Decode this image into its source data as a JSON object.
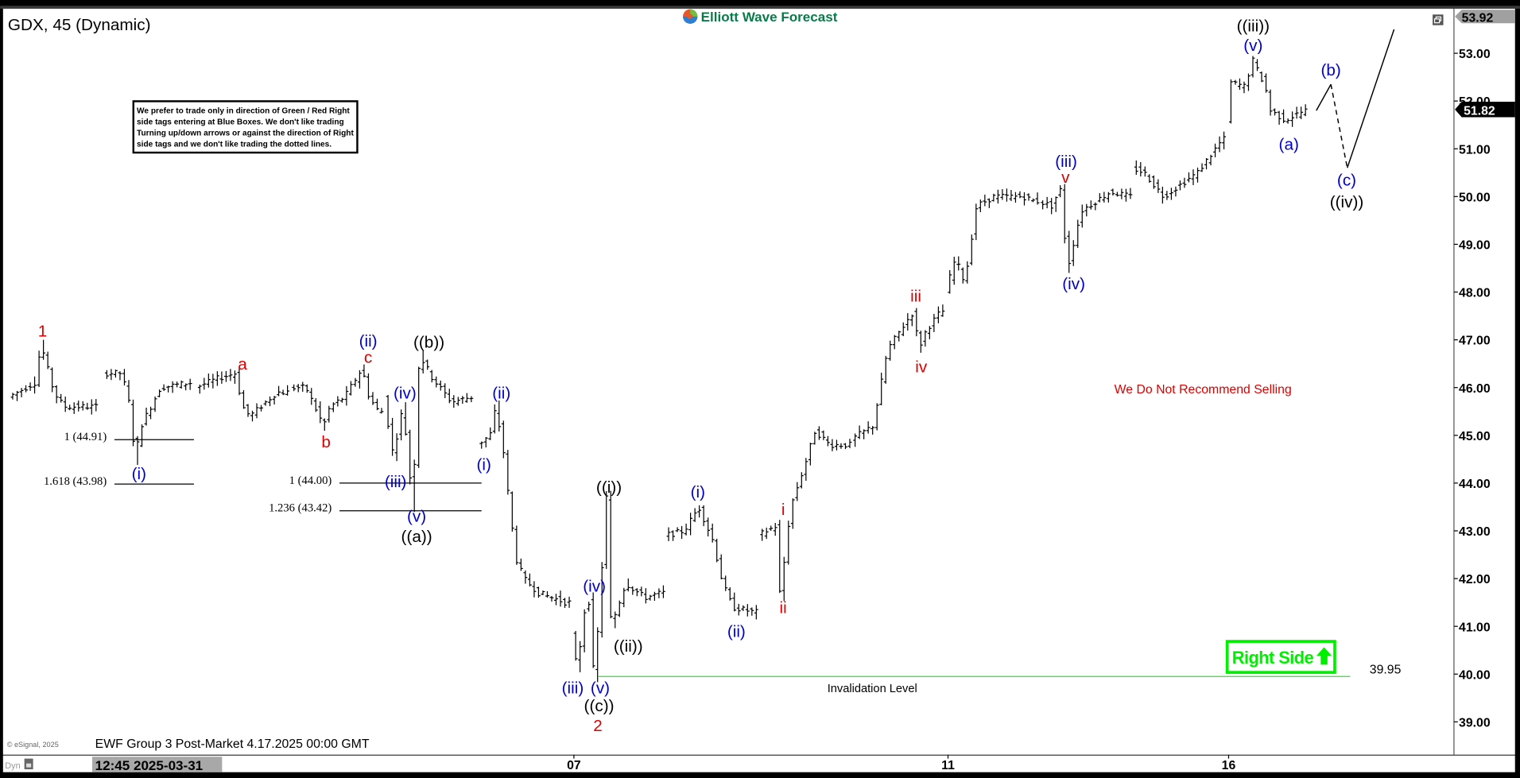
{
  "header": {
    "symbol_title": "GDX, 45 (Dynamic)",
    "logo_text": "Elliott Wave Forecast"
  },
  "notice": {
    "lines": [
      "We prefer to trade only in direction of Green / Red Right",
      "side tags entering at Blue Boxes. We don't like trading",
      "Turning up/down arrows or against the direction of Right",
      "side tags and we don't like trading the dotted lines."
    ]
  },
  "footer": {
    "copyright": "© eSignal, 2025",
    "caption": "EWF Group 3 Post-Market 4.17.2025 00:00 GMT",
    "dyn_label": "Dyn",
    "cursor_time": "12:45 2025-03-31"
  },
  "colors": {
    "blue_labels": "#0000cc",
    "red_labels": "#dd0000",
    "black_labels": "#000000",
    "invalidation": "#33dd33",
    "right_side": "#00ee00",
    "logo_text": "#0b7a4b"
  },
  "chart_data": {
    "type": "ohlc",
    "symbol": "GDX",
    "interval": "45",
    "ylim": [
      38.5,
      53.92
    ],
    "y_ticks": [
      "39.00",
      "40.00",
      "41.00",
      "42.00",
      "43.00",
      "44.00",
      "45.00",
      "46.00",
      "47.00",
      "48.00",
      "49.00",
      "50.00",
      "51.00",
      "52.00",
      "53.00"
    ],
    "x_ticks": [
      {
        "date": "04-07",
        "label": "07"
      },
      {
        "date": "04-11",
        "label": "11"
      },
      {
        "date": "04-16",
        "label": "16"
      }
    ],
    "high_marker": "53.92",
    "last_price": "51.82",
    "sessions": [
      {
        "date": "03-28",
        "path": [
          [
            4.0,
            45.8
          ],
          [
            8.5,
            46.1
          ],
          [
            9.6,
            46.9
          ],
          [
            11.8,
            45.9
          ],
          [
            13.5,
            45.6
          ],
          [
            18.4,
            45.6
          ]
        ]
      },
      {
        "date": "03-31",
        "path": [
          [
            4.1,
            46.3
          ],
          [
            7.4,
            46.3
          ],
          [
            9.0,
            45.5
          ],
          [
            9.6,
            44.5
          ],
          [
            10.7,
            45.2
          ],
          [
            14.0,
            46.0
          ],
          [
            19.0,
            46.1
          ]
        ]
      },
      {
        "date": "04-01",
        "path": [
          [
            4.0,
            46.0
          ],
          [
            8.0,
            46.2
          ],
          [
            10.8,
            46.3
          ],
          [
            12.1,
            45.6
          ],
          [
            13.3,
            45.4
          ],
          [
            17.9,
            45.9
          ],
          [
            19.6,
            45.9
          ]
        ]
      },
      {
        "date": "04-02",
        "path": [
          [
            4.1,
            46.0
          ],
          [
            6.9,
            46.0
          ],
          [
            9.9,
            45.2
          ],
          [
            11.0,
            45.6
          ],
          [
            13.5,
            45.8
          ],
          [
            16.5,
            46.4
          ],
          [
            17.7,
            45.8
          ],
          [
            19.3,
            45.5
          ]
        ]
      },
      {
        "date": "04-03",
        "path": [
          [
            4.2,
            45.8
          ],
          [
            5.8,
            44.6
          ],
          [
            7.5,
            45.6
          ],
          [
            8.8,
            44.0
          ],
          [
            9.1,
            43.5
          ],
          [
            10.3,
            46.7
          ],
          [
            12.5,
            46.2
          ],
          [
            15.8,
            45.7
          ],
          [
            19.1,
            45.8
          ]
        ]
      },
      {
        "date": "04-04",
        "path": [
          [
            4.2,
            44.8
          ],
          [
            6.4,
            45.0
          ],
          [
            7.4,
            45.6
          ],
          [
            8.9,
            44.5
          ],
          [
            9.7,
            43.5
          ],
          [
            10.9,
            42.4
          ],
          [
            12.2,
            42.0
          ],
          [
            14.7,
            41.7
          ],
          [
            19.3,
            41.5
          ]
        ]
      },
      {
        "date": "04-07",
        "path": [
          [
            4.3,
            40.8
          ],
          [
            5.3,
            40.1
          ],
          [
            6.5,
            41.3
          ],
          [
            7.6,
            41.6
          ],
          [
            8.1,
            39.95
          ],
          [
            8.9,
            41.0
          ],
          [
            10.3,
            43.7
          ],
          [
            11.1,
            41.0
          ],
          [
            13.6,
            41.9
          ],
          [
            16.9,
            41.6
          ],
          [
            19.6,
            41.7
          ]
        ]
      },
      {
        "date": "04-08",
        "path": [
          [
            4.2,
            42.9
          ],
          [
            7.6,
            43.0
          ],
          [
            10.1,
            43.5
          ],
          [
            12.5,
            42.8
          ],
          [
            14.2,
            41.9
          ],
          [
            15.9,
            41.4
          ],
          [
            19.5,
            41.3
          ]
        ]
      },
      {
        "date": "04-09",
        "path": [
          [
            4.2,
            42.9
          ],
          [
            7.3,
            43.1
          ],
          [
            8.0,
            41.6
          ],
          [
            9.8,
            43.5
          ],
          [
            12.3,
            44.4
          ],
          [
            14.0,
            45.1
          ],
          [
            16.5,
            44.8
          ],
          [
            19.8,
            44.8
          ]
        ]
      },
      {
        "date": "04-10",
        "path": [
          [
            4.1,
            44.9
          ],
          [
            7.9,
            45.2
          ],
          [
            10.4,
            46.8
          ],
          [
            13.7,
            47.4
          ],
          [
            14.9,
            47.6
          ],
          [
            15.7,
            46.8
          ],
          [
            17.0,
            47.2
          ],
          [
            19.5,
            47.6
          ]
        ]
      },
      {
        "date": "04-11",
        "path": [
          [
            4.3,
            48.0
          ],
          [
            6.0,
            48.7
          ],
          [
            7.6,
            48.2
          ],
          [
            9.6,
            49.8
          ],
          [
            12.6,
            50.0
          ],
          [
            17.6,
            50.0
          ],
          [
            19.6,
            49.9
          ]
        ]
      },
      {
        "date": "04-14",
        "path": [
          [
            4.2,
            49.9
          ],
          [
            6.6,
            49.8
          ],
          [
            7.9,
            50.2
          ],
          [
            9.2,
            48.5
          ],
          [
            11.5,
            49.7
          ],
          [
            16.5,
            50.1
          ],
          [
            19.8,
            50.0
          ]
        ]
      },
      {
        "date": "04-15",
        "path": [
          [
            4.2,
            50.6
          ],
          [
            6.3,
            50.5
          ],
          [
            9.6,
            50.0
          ],
          [
            15.4,
            50.5
          ],
          [
            19.7,
            51.2
          ]
        ]
      },
      {
        "date": "04-16",
        "path": [
          [
            4.4,
            51.6
          ],
          [
            4.7,
            52.4
          ],
          [
            7.7,
            52.3
          ],
          [
            8.7,
            52.9
          ],
          [
            11.0,
            52.3
          ],
          [
            11.9,
            51.8
          ],
          [
            14.4,
            51.6
          ],
          [
            17.7,
            51.8
          ]
        ]
      }
    ],
    "projection": [
      {
        "date": "04-16",
        "hour": 19.0,
        "price": 51.8,
        "style": "solid"
      },
      {
        "date": "04-17",
        "hour": 5.5,
        "price": 52.35,
        "style": "dashed"
      },
      {
        "date": "04-17",
        "hour": 8.3,
        "price": 50.6,
        "style": "solid"
      },
      {
        "date": "04-17",
        "hour": 16.3,
        "price": 53.5
      }
    ],
    "wave_labels": [
      {
        "text": "1",
        "color": "red",
        "date": "03-28",
        "hour": 9.1,
        "price": 47.16
      },
      {
        "text": "(i)",
        "color": "blue",
        "date": "03-31",
        "hour": 9.6,
        "price": 44.17
      },
      {
        "text": "a",
        "color": "red",
        "date": "04-01",
        "hour": 11.3,
        "price": 46.47
      },
      {
        "text": "b",
        "color": "red",
        "date": "04-02",
        "hour": 9.6,
        "price": 44.84
      },
      {
        "text": "(ii)",
        "color": "blue",
        "date": "04-02",
        "hour": 16.8,
        "price": 46.95
      },
      {
        "text": "c",
        "color": "red",
        "date": "04-02",
        "hour": 16.8,
        "price": 46.61
      },
      {
        "text": "((b))",
        "color": "black",
        "date": "04-03",
        "hour": 11.2,
        "price": 46.93
      },
      {
        "text": "(iv)",
        "color": "blue",
        "date": "04-03",
        "hour": 7.1,
        "price": 45.86
      },
      {
        "text": "(iii)",
        "color": "blue",
        "date": "04-03",
        "hour": 5.5,
        "price": 44.01
      },
      {
        "text": "(v)",
        "color": "blue",
        "date": "04-03",
        "hour": 9.1,
        "price": 43.28
      },
      {
        "text": "((a))",
        "color": "black",
        "date": "04-03",
        "hour": 9.1,
        "price": 42.86
      },
      {
        "text": "(ii)",
        "color": "blue",
        "date": "04-04",
        "hour": 7.6,
        "price": 45.86
      },
      {
        "text": "(i)",
        "color": "blue",
        "date": "04-04",
        "hour": 4.6,
        "price": 44.36
      },
      {
        "text": "((i))",
        "color": "black",
        "date": "04-07",
        "hour": 10.0,
        "price": 43.89
      },
      {
        "text": "(iv)",
        "color": "blue",
        "date": "04-07",
        "hour": 7.5,
        "price": 41.82
      },
      {
        "text": "((ii))",
        "color": "black",
        "date": "04-07",
        "hour": 13.3,
        "price": 40.56
      },
      {
        "text": "(iii)",
        "color": "blue",
        "date": "04-04",
        "hour": 19.8,
        "price": 39.69
      },
      {
        "text": "(v)",
        "color": "blue",
        "date": "04-07",
        "hour": 8.5,
        "price": 39.69
      },
      {
        "text": "((c))",
        "color": "black",
        "date": "04-07",
        "hour": 8.3,
        "price": 39.31
      },
      {
        "text": "2",
        "color": "red",
        "date": "04-07",
        "hour": 8.1,
        "price": 38.9
      },
      {
        "text": "(i)",
        "color": "blue",
        "date": "04-08",
        "hour": 9.2,
        "price": 43.79
      },
      {
        "text": "(ii)",
        "color": "blue",
        "date": "04-08",
        "hour": 15.8,
        "price": 40.87
      },
      {
        "text": "i",
        "color": "red",
        "date": "04-09",
        "hour": 7.8,
        "price": 43.42
      },
      {
        "text": "ii",
        "color": "red",
        "date": "04-09",
        "hour": 7.8,
        "price": 41.37
      },
      {
        "text": "iii",
        "color": "red",
        "date": "04-10",
        "hour": 14.5,
        "price": 47.89
      },
      {
        "text": "iv",
        "color": "red",
        "date": "04-10",
        "hour": 15.4,
        "price": 46.41
      },
      {
        "text": "(iii)",
        "color": "blue",
        "date": "04-14",
        "hour": 8.2,
        "price": 50.71
      },
      {
        "text": "v",
        "color": "red",
        "date": "04-14",
        "hour": 8.1,
        "price": 50.38
      },
      {
        "text": "(iv)",
        "color": "blue",
        "date": "04-14",
        "hour": 9.5,
        "price": 48.15
      },
      {
        "text": "((iii))",
        "color": "black",
        "date": "04-16",
        "hour": 8.2,
        "price": 53.55
      },
      {
        "text": "(v)",
        "color": "blue",
        "date": "04-16",
        "hour": 8.2,
        "price": 53.14
      },
      {
        "text": "(b)",
        "color": "blue",
        "date": "04-17",
        "hour": 5.5,
        "price": 52.63
      },
      {
        "text": "(a)",
        "color": "blue",
        "date": "04-16",
        "hour": 14.3,
        "price": 51.07
      },
      {
        "text": "(c)",
        "color": "blue",
        "date": "04-17",
        "hour": 8.2,
        "price": 50.32
      },
      {
        "text": "((iv))",
        "color": "black",
        "date": "04-17",
        "hour": 8.2,
        "price": 49.86
      }
    ],
    "fib_levels": [
      {
        "text": "1 (44.91)",
        "price": 44.91,
        "from": {
          "date": "03-31",
          "hour": 5.4
        },
        "to": {
          "date": "03-31",
          "hour": 19.0
        }
      },
      {
        "text": "1.618 (43.98)",
        "price": 43.98,
        "from": {
          "date": "03-31",
          "hour": 5.4
        },
        "to": {
          "date": "03-31",
          "hour": 19.0
        }
      },
      {
        "text": "1 (44.00)",
        "price": 44.0,
        "from": {
          "date": "04-02",
          "hour": 11.9
        },
        "to": {
          "date": "04-04",
          "hour": 4.2
        }
      },
      {
        "text": "1.236 (43.42)",
        "price": 43.42,
        "from": {
          "date": "04-02",
          "hour": 11.9
        },
        "to": {
          "date": "04-04",
          "hour": 4.2
        }
      }
    ],
    "invalidation": {
      "price": 39.95,
      "value_label": "39.95",
      "label": "Invalidation Level",
      "from": {
        "date": "04-07",
        "hour": 8.1
      },
      "to": {
        "date": "04-17",
        "hour": 8.8
      }
    },
    "annotation": "We Do Not Recommend Selling",
    "right_side_tag": {
      "text": "Right Side",
      "direction": "up",
      "icon": "arrow-up-icon"
    }
  }
}
